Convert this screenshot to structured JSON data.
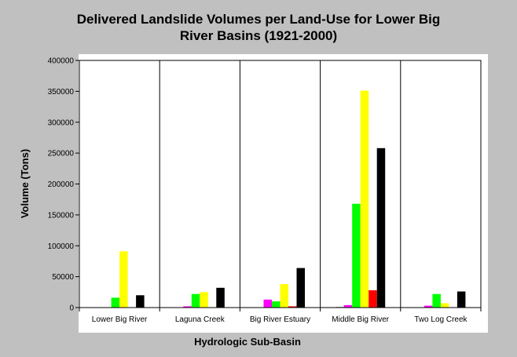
{
  "chart_data": {
    "type": "bar",
    "title_lines": [
      "Delivered Landslide Volumes per Land-Use for Lower Big",
      "River Basins (1921-2000)"
    ],
    "xlabel": "Hydrologic Sub-Basin",
    "ylabel": "Volume (Tons)",
    "ylim": [
      0,
      400000
    ],
    "yticks": [
      0,
      50000,
      100000,
      150000,
      200000,
      250000,
      300000,
      350000,
      400000
    ],
    "ytick_labels": [
      "0",
      "50000",
      "100000",
      "150000",
      "200000",
      "250000",
      "300000",
      "350000",
      "400000"
    ],
    "grid": "vertical separators between categories",
    "legend": "none",
    "categories": [
      "Lower Big River",
      "Laguna Creek",
      "Big River Estuary",
      "Middle Big River",
      "Two Log Creek"
    ],
    "series": [
      {
        "color": "#808080",
        "values": [
          0,
          0,
          0,
          1000,
          0
        ]
      },
      {
        "color": "#ff00ff",
        "values": [
          0,
          2000,
          13000,
          4000,
          3000
        ]
      },
      {
        "color": "#00ff00",
        "values": [
          16000,
          22000,
          10000,
          168000,
          22000
        ]
      },
      {
        "color": "#ffff00",
        "values": [
          91000,
          25000,
          38000,
          351000,
          7000
        ]
      },
      {
        "color": "#ff0000",
        "values": [
          0,
          0,
          2000,
          28000,
          0
        ]
      },
      {
        "color": "#000000",
        "values": [
          20000,
          32000,
          64000,
          258000,
          26000
        ]
      }
    ]
  }
}
